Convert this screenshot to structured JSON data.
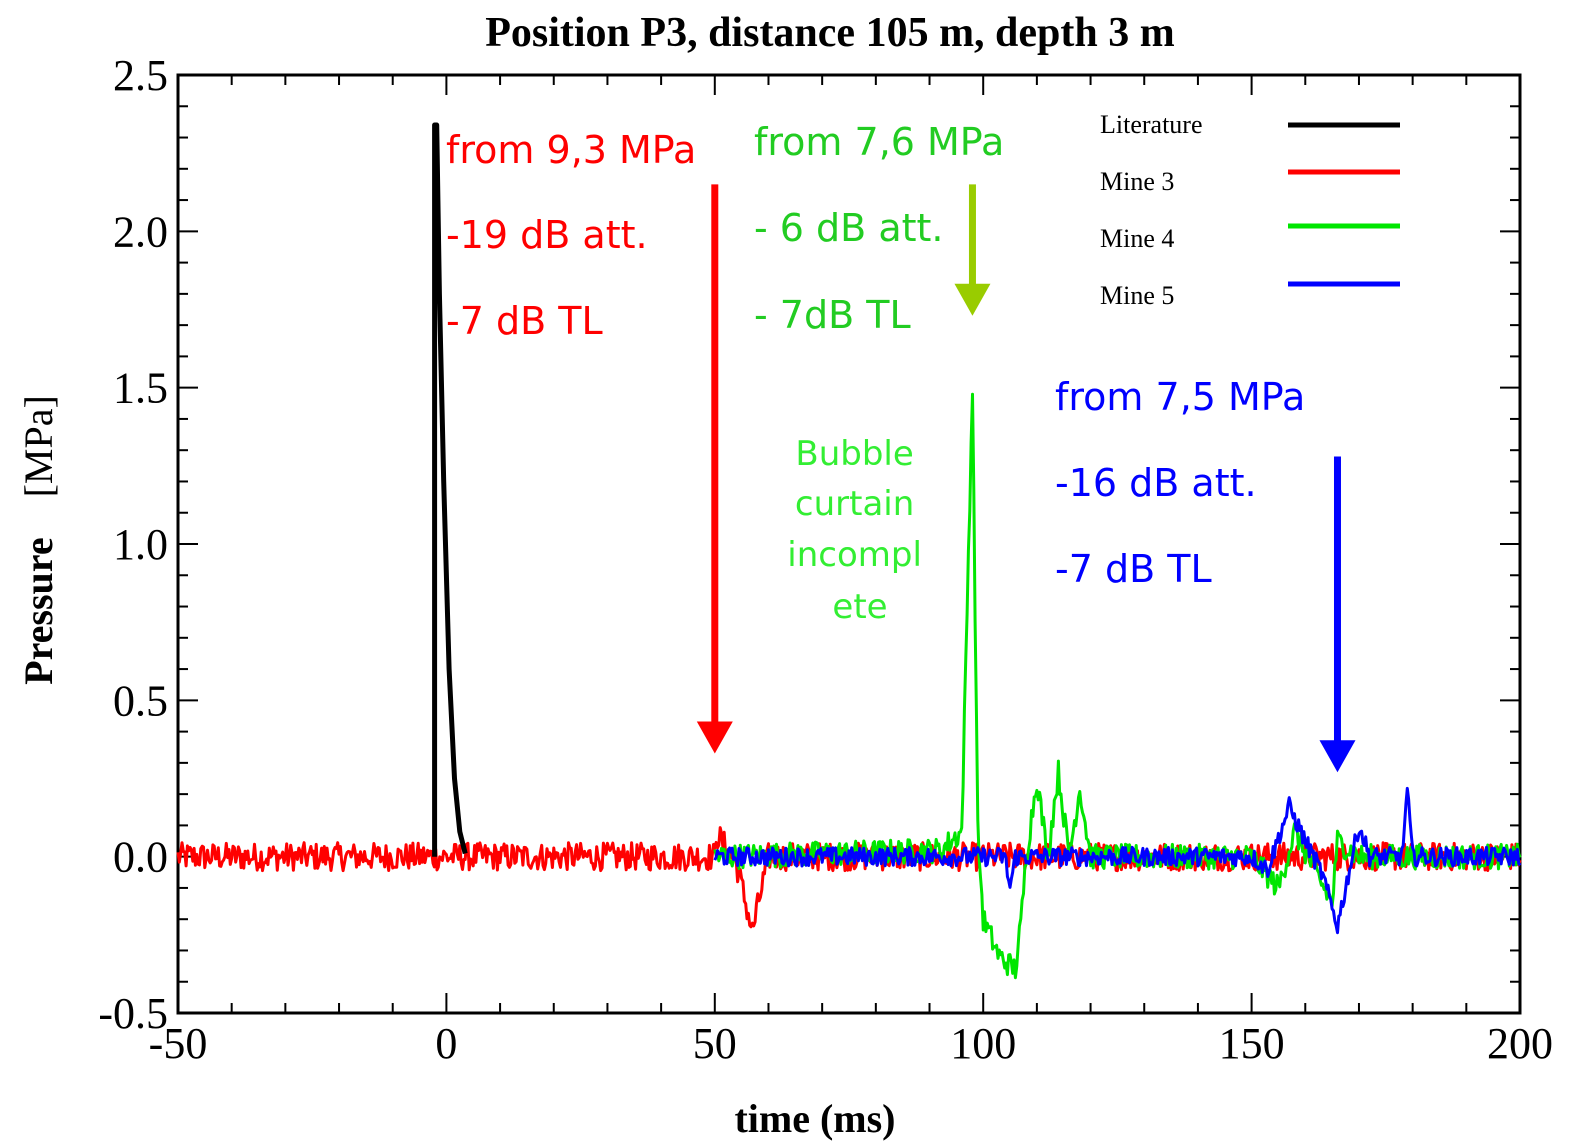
{
  "chart_data": {
    "type": "line",
    "title": "Position P3, distance 105 m, depth 3 m",
    "xlabel": "time (ms)",
    "ylabel_word": "Pressure",
    "ylabel_unit": "[MPa]",
    "xlim": [
      -50,
      200
    ],
    "ylim": [
      -0.5,
      2.5
    ],
    "x_ticks": [
      -50,
      0,
      50,
      100,
      150,
      200
    ],
    "x_tick_labels": [
      "-50",
      "0",
      "50",
      "100",
      "150",
      "200"
    ],
    "y_ticks": [
      -0.5,
      0.0,
      0.5,
      1.0,
      1.5,
      2.0,
      2.5
    ],
    "y_tick_labels": [
      "-0.5",
      "0.0",
      "0.5",
      "1.0",
      "1.5",
      "2.0",
      "2.5"
    ],
    "grid": false,
    "legend_position": "top-right",
    "series": [
      {
        "name": "Literature",
        "color": "#000000",
        "noise": 0,
        "points": [
          [
            -2.2,
            0.0
          ],
          [
            -2.2,
            2.34
          ],
          [
            -1.8,
            2.34
          ],
          [
            -1.3,
            1.8
          ],
          [
            -0.5,
            1.2
          ],
          [
            0.5,
            0.6
          ],
          [
            1.5,
            0.25
          ],
          [
            2.5,
            0.08
          ],
          [
            3.5,
            0.01
          ]
        ]
      },
      {
        "name": "Mine 3",
        "color": "#ff0000",
        "noise": 0.045,
        "points": [
          [
            -50,
            0.0
          ],
          [
            50,
            0.0
          ],
          [
            50,
            0.08
          ],
          [
            54,
            -0.02
          ],
          [
            57,
            -0.24
          ],
          [
            60,
            0.0
          ],
          [
            100,
            0.0
          ],
          [
            200,
            0.0
          ]
        ]
      },
      {
        "name": "Mine 4",
        "color": "#00e600",
        "noise": 0.04,
        "points": [
          [
            50,
            0.0
          ],
          [
            92,
            0.02
          ],
          [
            96,
            0.08
          ],
          [
            98,
            1.5
          ],
          [
            99,
            0.08
          ],
          [
            100,
            -0.2
          ],
          [
            103,
            -0.32
          ],
          [
            106,
            -0.36
          ],
          [
            107,
            -0.22
          ],
          [
            108,
            0.0
          ],
          [
            110,
            0.25
          ],
          [
            112,
            0.0
          ],
          [
            114,
            0.27
          ],
          [
            116,
            0.0
          ],
          [
            118,
            0.22
          ],
          [
            120,
            0.0
          ],
          [
            150,
            0.0
          ],
          [
            155,
            -0.1
          ],
          [
            158,
            0.08
          ],
          [
            165,
            -0.15
          ],
          [
            166,
            0.05
          ],
          [
            170,
            0.0
          ],
          [
            200,
            0.0
          ]
        ]
      },
      {
        "name": "Mine 5",
        "color": "#0000ff",
        "noise": 0.03,
        "points": [
          [
            50,
            0.0
          ],
          [
            104,
            0.0
          ],
          [
            105,
            -0.1
          ],
          [
            106,
            0.0
          ],
          [
            150,
            0.0
          ],
          [
            153,
            -0.04
          ],
          [
            157,
            0.16
          ],
          [
            160,
            0.05
          ],
          [
            163,
            -0.05
          ],
          [
            166,
            -0.22
          ],
          [
            168,
            -0.06
          ],
          [
            170,
            0.1
          ],
          [
            172,
            0.0
          ],
          [
            178,
            0.0
          ],
          [
            179,
            0.21
          ],
          [
            180,
            0.0
          ],
          [
            200,
            0.0
          ]
        ]
      }
    ],
    "annotations": [
      {
        "lines": [
          "from 9,3 MPa",
          "-19 dB att.",
          "-7 dB TL"
        ],
        "color": "#ff0000"
      },
      {
        "lines": [
          "from 7,6 MPa",
          "- 6 dB att.",
          "- 7dB TL"
        ],
        "color": "#22cc22"
      },
      {
        "lines": [
          "Bubble",
          "curtain",
          "incompl",
          "ete"
        ],
        "color": "#33ee33"
      },
      {
        "lines": [
          "from 7,5 MPa",
          "-16 dB att.",
          "-7 dB TL"
        ],
        "color": "#0000ff"
      }
    ],
    "arrows": [
      {
        "x": 50,
        "y_from": 2.15,
        "y_to": 0.33,
        "color": "#ff0000"
      },
      {
        "x": 98,
        "y_from": 2.15,
        "y_to": 1.73,
        "color": "#99cc00"
      },
      {
        "x": 166,
        "y_from": 1.28,
        "y_to": 0.27,
        "color": "#0000ff"
      }
    ]
  }
}
